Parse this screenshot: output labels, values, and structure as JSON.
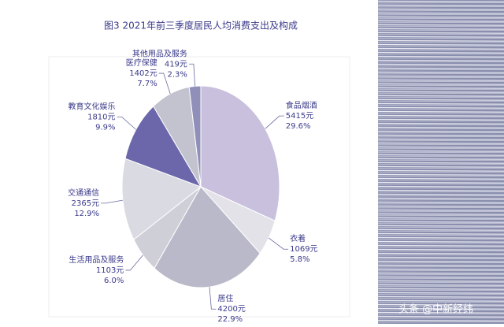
{
  "chart_data": {
    "type": "pie",
    "title": "图3  2021年前三季度居民人均消费支出及构成",
    "categories": [
      "食品烟酒",
      "衣着",
      "居住",
      "生活用品及服务",
      "交通通信",
      "教育文化娱乐",
      "医疗保健",
      "其他用品及服务"
    ],
    "amounts": [
      5415,
      1069,
      4200,
      1103,
      2365,
      1810,
      1402,
      419
    ],
    "amount_labels": [
      "5415元",
      "1069元",
      "4200元",
      "1103元",
      "2365元",
      "1810元",
      "1402元",
      "419元"
    ],
    "values": [
      29.6,
      5.8,
      22.9,
      6.0,
      12.9,
      9.9,
      7.7,
      2.3
    ],
    "value_labels": [
      "29.6%",
      "5.8%",
      "22.9%",
      "6.0%",
      "12.9%",
      "9.9%",
      "7.7%",
      "2.3%"
    ],
    "colors": [
      "#c9c0de",
      "#e2e2e8",
      "#b9b9c9",
      "#cfcfd8",
      "#dadae3",
      "#6b67aa",
      "#c3c3d0",
      "#8f8fba"
    ]
  },
  "watermark": "头条 @中新经纬"
}
